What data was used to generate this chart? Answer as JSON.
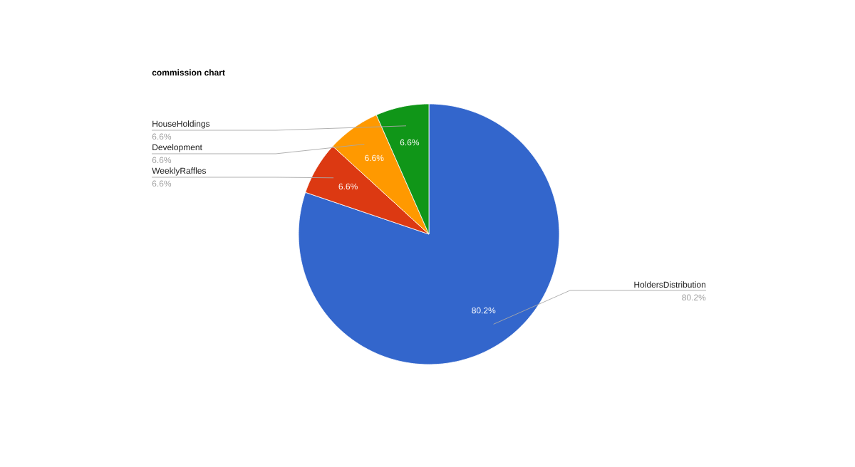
{
  "chart_data": {
    "type": "pie",
    "title": "commission chart",
    "categories": [
      "HoldersDistribution",
      "WeeklyRaffles",
      "Development",
      "HouseHoldings"
    ],
    "values": [
      80.2,
      6.6,
      6.6,
      6.6
    ],
    "colors": [
      "#3366cc",
      "#dc3912",
      "#ff9900",
      "#109618"
    ],
    "value_labels": [
      "80.2%",
      "6.6%",
      "6.6%",
      "6.6%"
    ]
  }
}
